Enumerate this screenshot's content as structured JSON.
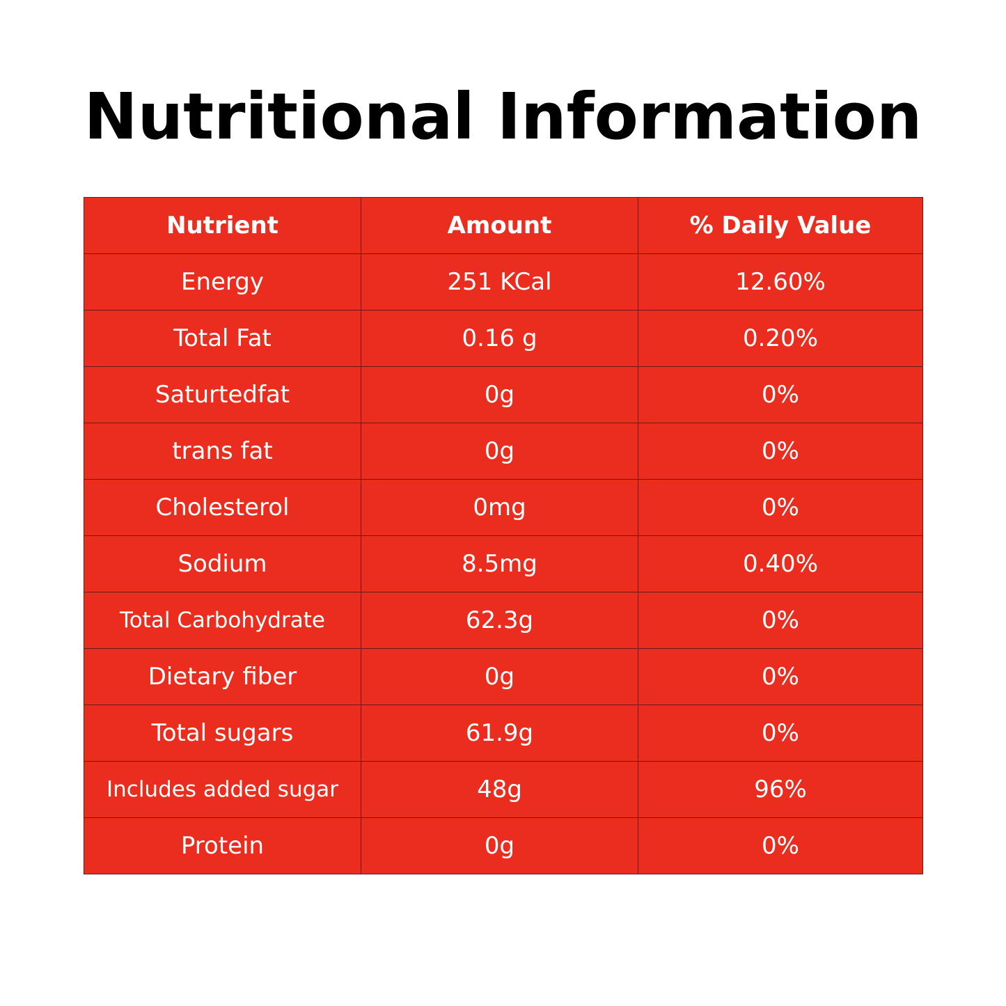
{
  "title": "Nutritional Information",
  "table": {
    "headers": [
      "Nutrient",
      "Amount",
      "% Daily Value"
    ],
    "rows": [
      {
        "nutrient": "Energy",
        "amount": "251 KCal",
        "daily_value": "12.60%"
      },
      {
        "nutrient": "Total Fat",
        "amount": "0.16 g",
        "daily_value": "0.20%"
      },
      {
        "nutrient": "Saturtedfat",
        "amount": "0g",
        "daily_value": "0%"
      },
      {
        "nutrient": "trans fat",
        "amount": "0g",
        "daily_value": "0%"
      },
      {
        "nutrient": "Cholesterol",
        "amount": "0mg",
        "daily_value": "0%"
      },
      {
        "nutrient": "Sodium",
        "amount": "8.5mg",
        "daily_value": "0.40%"
      },
      {
        "nutrient": "Total Carbohydrate",
        "amount": "62.3g",
        "daily_value": "0%"
      },
      {
        "nutrient": "Dietary fiber",
        "amount": "0g",
        "daily_value": "0%"
      },
      {
        "nutrient": "Total sugars",
        "amount": "61.9g",
        "daily_value": "0%"
      },
      {
        "nutrient": "Includes added sugar",
        "amount": "48g",
        "daily_value": "96%"
      },
      {
        "nutrient": "Protein",
        "amount": "0g",
        "daily_value": "0%"
      }
    ]
  },
  "colors": {
    "table_background": "#ea2d1e",
    "table_border": "#6a1a12",
    "table_text": "#ffffff",
    "title_text": "#000000",
    "page_background": "#ffffff"
  }
}
